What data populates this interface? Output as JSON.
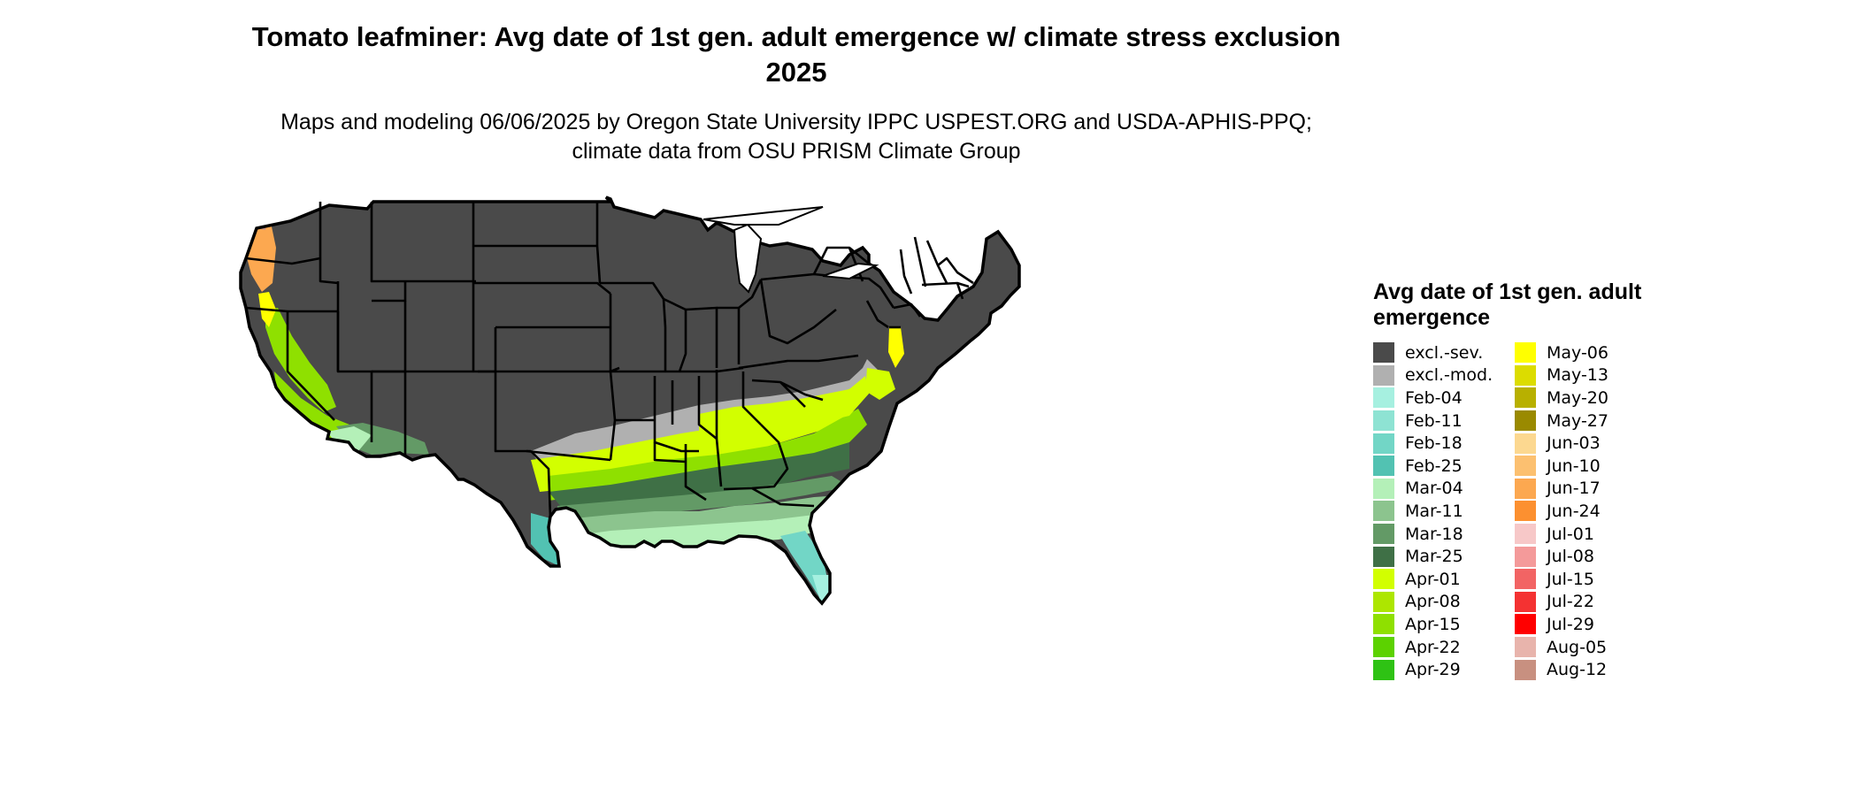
{
  "title": "Tomato leafminer: Avg date of 1st gen. adult emergence w/ climate stress exclusion 2025",
  "subtitle": "Maps and modeling 06/06/2025 by Oregon State University IPPC USPEST.ORG and USDA-APHIS-PPQ; climate data from OSU PRISM Climate Group",
  "legend": {
    "title": "Avg date of 1st gen. adult emergence",
    "items": [
      {
        "label": "excl.-sev.",
        "color": "#4a4a4a"
      },
      {
        "label": "excl.-mod.",
        "color": "#b0b0b0"
      },
      {
        "label": "Feb-04",
        "color": "#a6f0e0"
      },
      {
        "label": "Feb-11",
        "color": "#8ee3d3"
      },
      {
        "label": "Feb-18",
        "color": "#72d6c6"
      },
      {
        "label": "Feb-25",
        "color": "#52c2b2"
      },
      {
        "label": "Mar-04",
        "color": "#b4f0b8"
      },
      {
        "label": "Mar-11",
        "color": "#8cc48e"
      },
      {
        "label": "Mar-18",
        "color": "#639a66"
      },
      {
        "label": "Mar-25",
        "color": "#3f7046"
      },
      {
        "label": "Apr-01",
        "color": "#d2ff00"
      },
      {
        "label": "Apr-08",
        "color": "#ade600"
      },
      {
        "label": "Apr-15",
        "color": "#8fe000"
      },
      {
        "label": "Apr-22",
        "color": "#5cd200"
      },
      {
        "label": "Apr-29",
        "color": "#2ec214"
      },
      {
        "label": "May-06",
        "color": "#ffff00"
      },
      {
        "label": "May-13",
        "color": "#dcdc00"
      },
      {
        "label": "May-20",
        "color": "#b8b000"
      },
      {
        "label": "May-27",
        "color": "#9a8a00"
      },
      {
        "label": "Jun-03",
        "color": "#fcd890"
      },
      {
        "label": "Jun-10",
        "color": "#fcc070"
      },
      {
        "label": "Jun-17",
        "color": "#fca850"
      },
      {
        "label": "Jun-24",
        "color": "#fc9030"
      },
      {
        "label": "Jul-01",
        "color": "#f7c8c8"
      },
      {
        "label": "Jul-08",
        "color": "#f49a9a"
      },
      {
        "label": "Jul-15",
        "color": "#f26464"
      },
      {
        "label": "Jul-22",
        "color": "#f43232"
      },
      {
        "label": "Jul-29",
        "color": "#ff0000"
      },
      {
        "label": "Aug-05",
        "color": "#e8b4ac"
      },
      {
        "label": "Aug-12",
        "color": "#c89080"
      }
    ]
  }
}
